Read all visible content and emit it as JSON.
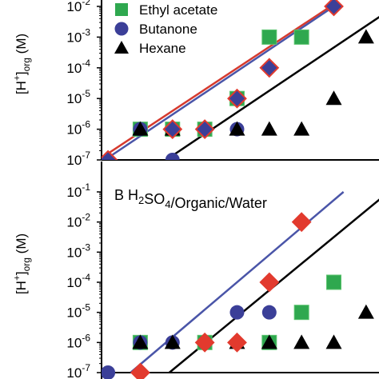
{
  "chart_data": [
    {
      "type": "scatter",
      "panel": "A",
      "title": "",
      "ylabel": "[H+]org (M)",
      "ylabel_parts": {
        "base": "[H",
        "sup": "+",
        "close": "]",
        "sub": "org",
        "unit": " (M)"
      },
      "yscale": "log",
      "ylim": [
        1e-07,
        0.01
      ],
      "yticks": [
        {
          "v": 1e-07,
          "base": "10",
          "exp": "-7"
        },
        {
          "v": 1e-06,
          "base": "10",
          "exp": "-6"
        },
        {
          "v": 1e-05,
          "base": "10",
          "exp": "-5"
        },
        {
          "v": 0.0001,
          "base": "10",
          "exp": "-4"
        },
        {
          "v": 0.001,
          "base": "10",
          "exp": "-3"
        },
        {
          "v": 0.01,
          "base": "10",
          "exp": "-2"
        }
      ],
      "legend": [
        {
          "name": "Ethyl acetate",
          "marker": "square",
          "color": "#2fa84f"
        },
        {
          "name": "Butanone",
          "marker": "circle",
          "color": "#3b3f98"
        },
        {
          "name": "Hexane",
          "marker": "triangle",
          "color": "#000000"
        }
      ],
      "legend_placement": "top-left",
      "series": [
        {
          "name": "Ethyl acetate",
          "marker": "square",
          "color": "#2fa84f",
          "points": [
            [
              1,
              1e-06
            ],
            [
              2,
              1e-06
            ],
            [
              3,
              1e-06
            ],
            [
              4,
              1e-05
            ],
            [
              5,
              0.001
            ],
            [
              6,
              0.001
            ]
          ]
        },
        {
          "name": "Butanone",
          "marker": "circle",
          "color": "#3b3f98",
          "points": [
            [
              1,
              1e-06
            ],
            [
              2,
              1e-07
            ],
            [
              3,
              1e-06
            ],
            [
              4,
              1e-06
            ]
          ]
        },
        {
          "name": "Hexane",
          "marker": "triangle",
          "color": "#000000",
          "points": [
            [
              1,
              1e-06
            ],
            [
              2,
              1e-06
            ],
            [
              4,
              1e-06
            ],
            [
              5,
              1e-06
            ],
            [
              6,
              1e-06
            ],
            [
              7,
              1e-05
            ],
            [
              8,
              0.001
            ]
          ]
        },
        {
          "name": "",
          "marker": "diamond",
          "color": "#3b3f98",
          "edge": "#e23a2e",
          "points": [
            [
              0,
              1e-07
            ],
            [
              2,
              1e-06
            ],
            [
              3,
              1e-06
            ],
            [
              4,
              1e-05
            ],
            [
              5,
              0.0001
            ],
            [
              7,
              0.01
            ]
          ]
        }
      ],
      "fit_lines": [
        {
          "color": "#d63a2e",
          "points": [
            [
              -0.3,
              1e-07
            ],
            [
              6.9,
              0.01
            ]
          ]
        },
        {
          "color": "#4a55a8",
          "points": [
            [
              -0.1,
              1e-07
            ],
            [
              7.0,
              0.01
            ]
          ]
        },
        {
          "color": "#000000",
          "points": [
            [
              1.8,
              1e-07
            ],
            [
              8.9,
              0.01
            ]
          ]
        }
      ]
    },
    {
      "type": "scatter",
      "panel": "B",
      "label": "B",
      "title": "H2SO4/Organic/Water",
      "title_parts": [
        {
          "t": "H",
          "sub": false
        },
        {
          "t": "2",
          "sub": true
        },
        {
          "t": "SO",
          "sub": false
        },
        {
          "t": "4",
          "sub": true
        },
        {
          "t": "/Organic/Water",
          "sub": false
        }
      ],
      "ylabel": "[H+]org (M)",
      "ylabel_parts": {
        "base": "[H",
        "sup": "+",
        "close": "]",
        "sub": "org",
        "unit": " (M)"
      },
      "yscale": "log",
      "ylim": [
        1e-07,
        0.1
      ],
      "yticks": [
        {
          "v": 1e-07,
          "base": "10",
          "exp": "-7"
        },
        {
          "v": 1e-06,
          "base": "10",
          "exp": "-6"
        },
        {
          "v": 1e-05,
          "base": "10",
          "exp": "-5"
        },
        {
          "v": 0.0001,
          "base": "10",
          "exp": "-4"
        },
        {
          "v": 0.001,
          "base": "10",
          "exp": "-3"
        },
        {
          "v": 0.01,
          "base": "10",
          "exp": "-2"
        },
        {
          "v": 0.1,
          "base": "10",
          "exp": "-1"
        }
      ],
      "series": [
        {
          "name": "Ethyl acetate",
          "marker": "square",
          "color": "#2fa84f",
          "points": [
            [
              1,
              1e-06
            ],
            [
              3,
              1e-06
            ],
            [
              5,
              1e-06
            ],
            [
              6,
              1e-05
            ],
            [
              7,
              0.0001
            ]
          ]
        },
        {
          "name": "Butanone",
          "marker": "circle",
          "color": "#3b3f98",
          "points": [
            [
              1,
              1e-06
            ],
            [
              2,
              1e-06
            ],
            [
              3,
              1e-06
            ],
            [
              4,
              1e-05
            ],
            [
              5,
              1e-05
            ],
            [
              0,
              1e-07
            ]
          ]
        },
        {
          "name": "Hexane",
          "marker": "triangle",
          "color": "#000000",
          "points": [
            [
              1,
              1e-06
            ],
            [
              2,
              1e-06
            ],
            [
              4,
              1e-06
            ],
            [
              5,
              1e-06
            ],
            [
              6,
              1e-06
            ],
            [
              7,
              1e-06
            ],
            [
              8,
              1e-05
            ]
          ]
        },
        {
          "name": "",
          "marker": "diamond",
          "color": "#e23a2e",
          "edge": "#e23a2e",
          "points": [
            [
              1,
              1e-07
            ],
            [
              3,
              1e-06
            ],
            [
              4,
              1e-06
            ],
            [
              5,
              0.0001
            ],
            [
              6,
              0.01
            ]
          ]
        }
      ],
      "fit_lines": [
        {
          "color": "#4a55a8",
          "points": [
            [
              0.7,
              1e-07
            ],
            [
              7.3,
              0.1
            ]
          ]
        },
        {
          "color": "#000000",
          "points": [
            [
              1.9,
              1e-07
            ],
            [
              8.7,
              0.1
            ]
          ]
        }
      ]
    }
  ]
}
